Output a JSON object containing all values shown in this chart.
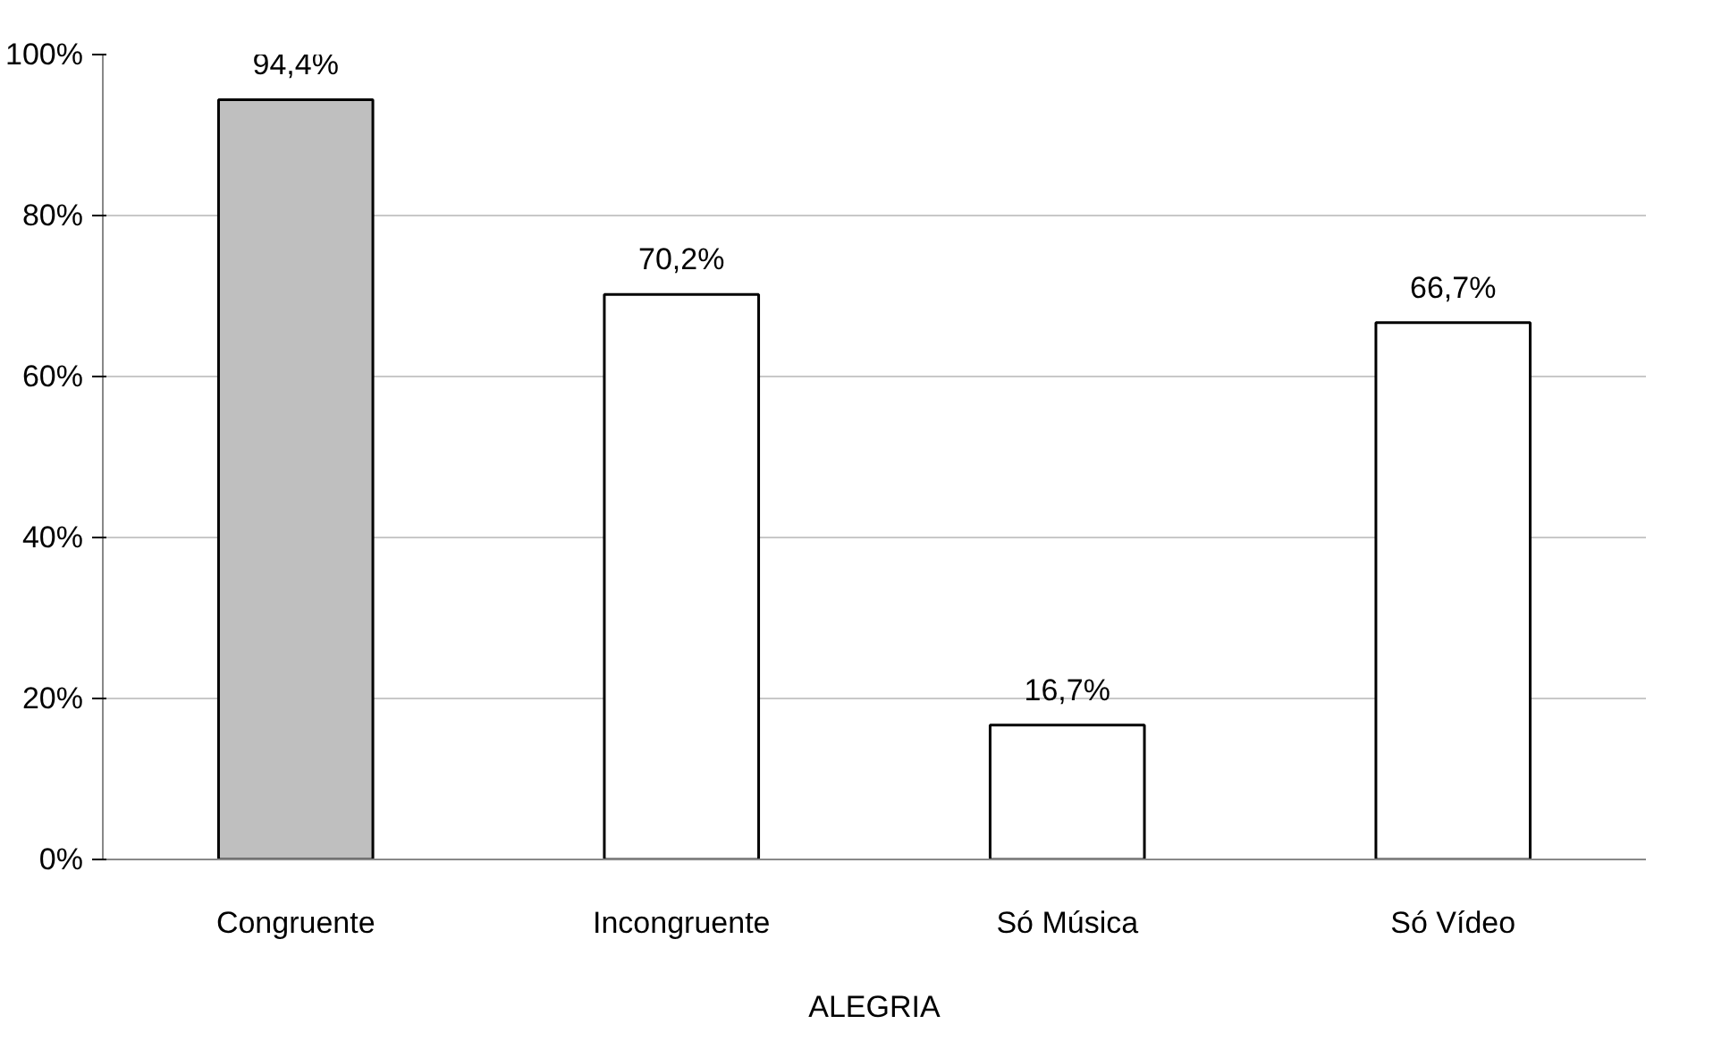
{
  "chart_data": {
    "type": "bar",
    "xlabel": "ALEGRIA",
    "categories": [
      "Congruente",
      "Incongruente",
      "Só Música",
      "Só Vídeo"
    ],
    "values": [
      94.4,
      70.2,
      16.7,
      66.7
    ],
    "colors": [
      "#bfbfbf",
      "#ffffff",
      "#ffffff",
      "#ffffff"
    ],
    "value_labels": [
      "94,4%",
      "70,2%",
      "16,7%",
      "66,7%"
    ],
    "ylim": [
      0,
      100
    ],
    "yticks": [
      {
        "value": 0,
        "label": "0%"
      },
      {
        "value": 20,
        "label": "20%"
      },
      {
        "value": 40,
        "label": "40%"
      },
      {
        "value": 60,
        "label": "60%"
      },
      {
        "value": 80,
        "label": "80%"
      },
      {
        "value": 100,
        "label": "100%"
      }
    ],
    "grid": "y"
  }
}
